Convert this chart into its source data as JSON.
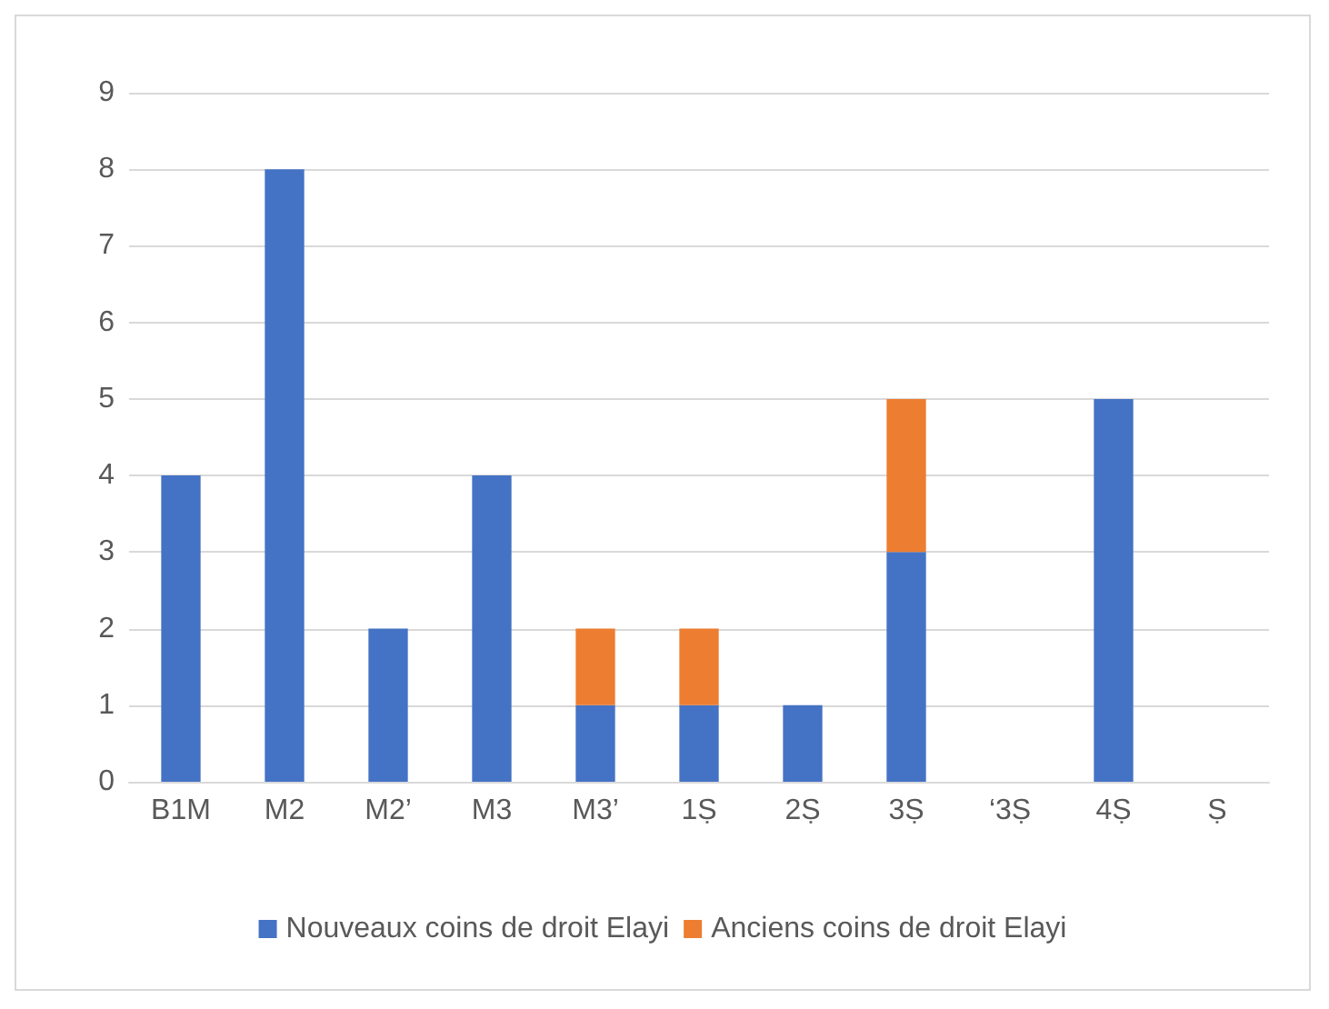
{
  "chart_data": {
    "type": "bar",
    "stacked": true,
    "categories": [
      "B1M",
      "M2",
      "M2’",
      "M3",
      "M3’",
      "1Ṣ",
      "2Ṣ",
      "3Ṣ",
      "‘3Ṣ",
      "4Ṣ",
      "Ṣ"
    ],
    "series": [
      {
        "name": "Nouveaux coins de droit Elayi",
        "color": "#4472c4",
        "values": [
          4,
          8,
          2,
          4,
          1,
          1,
          1,
          3,
          0,
          5,
          0
        ]
      },
      {
        "name": "Anciens coins de droit Elayi",
        "color": "#ed7d31",
        "values": [
          0,
          0,
          0,
          0,
          1,
          1,
          0,
          2,
          0,
          0,
          0
        ]
      }
    ],
    "ylim": [
      0,
      9
    ],
    "yticks": [
      0,
      1,
      2,
      3,
      4,
      5,
      6,
      7,
      8,
      9
    ],
    "grid": "y",
    "legend": "bottom"
  }
}
